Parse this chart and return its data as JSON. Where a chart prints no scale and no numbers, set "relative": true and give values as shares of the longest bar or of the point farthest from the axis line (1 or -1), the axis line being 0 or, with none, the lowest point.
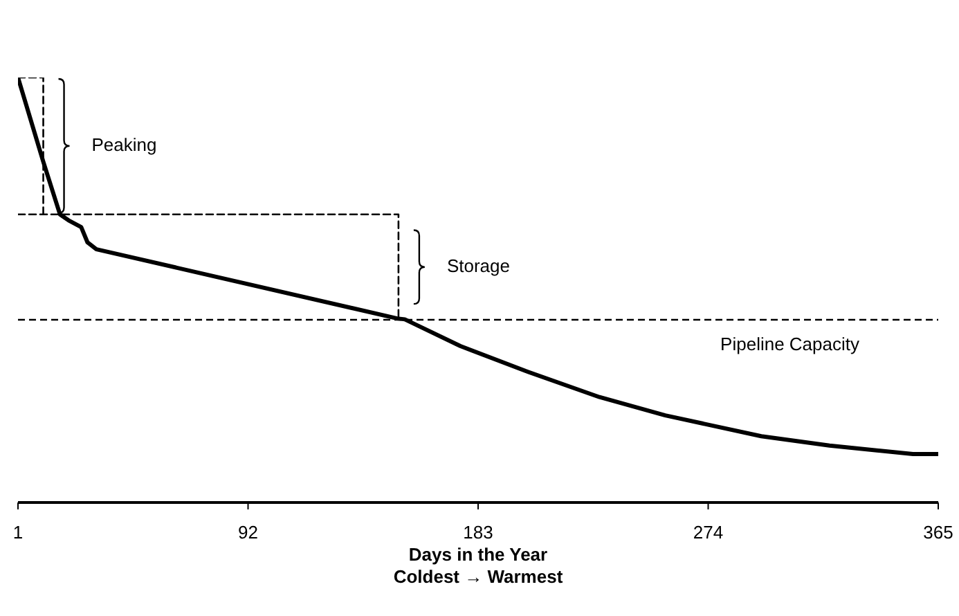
{
  "chart_data": {
    "type": "line",
    "relative": true,
    "xlabel": "Days in the Year\nColdest → Warmest",
    "xlim": [
      1,
      365
    ],
    "xticks": [
      1,
      92,
      183,
      274,
      365
    ],
    "grid": false,
    "marker": "none",
    "series": [
      {
        "color": "#000000",
        "line_style": "solid",
        "x": [
          1,
          11,
          17.6,
          21,
          26,
          28.5,
          32,
          151,
          154,
          176,
          202,
          231,
          257,
          295,
          322,
          355,
          365
        ],
        "values": [
          1,
          0.802,
          0.678,
          0.664,
          0.648,
          0.612,
          0.596,
          0.433,
          0.431,
          0.368,
          0.309,
          0.248,
          0.205,
          0.156,
          0.134,
          0.114,
          0.114
        ]
      },
      {
        "color": "#000000",
        "line_style": "dashed",
        "x": [
          1,
          11,
          11
        ],
        "values": [
          1,
          1,
          0.678
        ]
      },
      {
        "color": "#000000",
        "line_style": "dashed",
        "x": [
          1,
          151.5,
          151.5
        ],
        "values": [
          0.678,
          0.678,
          0.43
        ]
      }
    ],
    "ref_lines": [
      {
        "axis": "y",
        "value": 0.43,
        "label": "Pipeline Capacity",
        "color": "#000000",
        "line_style": "dashed"
      }
    ],
    "annotations": [
      "Peaking",
      "Storage"
    ]
  }
}
